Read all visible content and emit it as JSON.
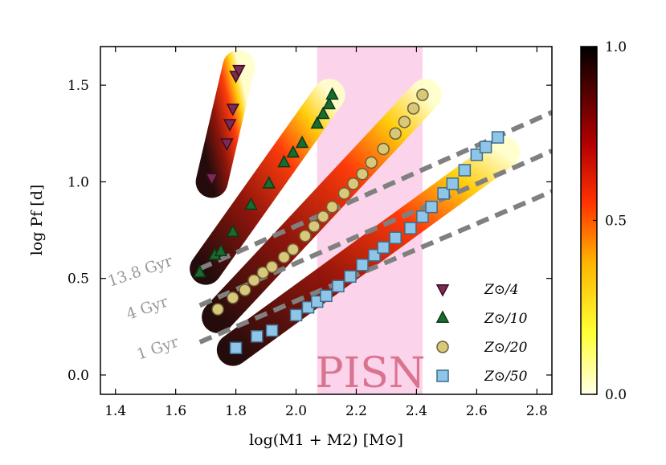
{
  "chart_data": {
    "type": "scatter",
    "xlabel": "log(M1 + M2) [M⊙]",
    "ylabel": "log  Pf [d]",
    "xlim": [
      1.35,
      2.85
    ],
    "ylim": [
      -0.1,
      1.7
    ],
    "xticks": [
      1.4,
      1.6,
      1.8,
      2.0,
      2.2,
      2.4,
      2.6,
      2.8
    ],
    "xtick_labels": [
      "1.4",
      "1.6",
      "1.8",
      "2.0",
      "2.2",
      "2.4",
      "2.6",
      "2.8"
    ],
    "yticks": [
      0.0,
      0.5,
      1.0,
      1.5
    ],
    "ytick_labels": [
      "0.0",
      "0.5",
      "1.0",
      "1.5"
    ],
    "shaded_region": {
      "label": "PISN",
      "x": [
        2.07,
        2.42
      ],
      "color": "#fbd3ea"
    },
    "isochrones": [
      {
        "label": "13.8 Gyr",
        "x": [
          1.68,
          2.85
        ],
        "y": [
          0.55,
          1.36
        ]
      },
      {
        "label": "4 Gyr",
        "x": [
          1.68,
          2.85
        ],
        "y": [
          0.36,
          1.16
        ]
      },
      {
        "label": "1 Gyr",
        "x": [
          1.68,
          2.85
        ],
        "y": [
          0.17,
          0.95
        ]
      }
    ],
    "bands": [
      {
        "x": [
          1.72,
          1.81
        ],
        "y": [
          1.0,
          1.6
        ]
      },
      {
        "x": [
          1.7,
          2.11
        ],
        "y": [
          0.55,
          1.45
        ]
      },
      {
        "x": [
          1.74,
          2.43
        ],
        "y": [
          0.3,
          1.45
        ]
      },
      {
        "x": [
          1.79,
          2.69
        ],
        "y": [
          0.13,
          1.15
        ]
      }
    ],
    "series": [
      {
        "name": "Z⊙/4",
        "marker": "triangle-down",
        "color": "#7b2c54",
        "edge": "#3d0b24",
        "points": [
          [
            1.72,
            1.02
          ],
          [
            1.77,
            1.2
          ],
          [
            1.78,
            1.3
          ],
          [
            1.79,
            1.38
          ],
          [
            1.8,
            1.55
          ],
          [
            1.81,
            1.58
          ]
        ]
      },
      {
        "name": "Z⊙/10",
        "marker": "triangle-up",
        "color": "#1a6b2e",
        "edge": "#0b3a17",
        "points": [
          [
            1.68,
            0.53
          ],
          [
            1.73,
            0.62
          ],
          [
            1.75,
            0.64
          ],
          [
            1.79,
            0.74
          ],
          [
            1.85,
            0.88
          ],
          [
            1.91,
            0.99
          ],
          [
            1.96,
            1.1
          ],
          [
            1.99,
            1.15
          ],
          [
            2.02,
            1.2
          ],
          [
            2.07,
            1.3
          ],
          [
            2.09,
            1.35
          ],
          [
            2.11,
            1.4
          ],
          [
            2.12,
            1.45
          ]
        ]
      },
      {
        "name": "Z⊙/20",
        "marker": "circle",
        "color": "#d9c87a",
        "edge": "#6b6138",
        "points": [
          [
            1.74,
            0.34
          ],
          [
            1.79,
            0.4
          ],
          [
            1.83,
            0.44
          ],
          [
            1.86,
            0.49
          ],
          [
            1.89,
            0.53
          ],
          [
            1.92,
            0.56
          ],
          [
            1.96,
            0.61
          ],
          [
            1.99,
            0.65
          ],
          [
            2.03,
            0.72
          ],
          [
            2.06,
            0.77
          ],
          [
            2.09,
            0.82
          ],
          [
            2.12,
            0.87
          ],
          [
            2.16,
            0.94
          ],
          [
            2.19,
            0.99
          ],
          [
            2.22,
            1.04
          ],
          [
            2.25,
            1.1
          ],
          [
            2.29,
            1.17
          ],
          [
            2.33,
            1.25
          ],
          [
            2.36,
            1.31
          ],
          [
            2.39,
            1.38
          ],
          [
            2.42,
            1.45
          ]
        ]
      },
      {
        "name": "Z⊙/50",
        "marker": "square",
        "color": "#8fc6e8",
        "edge": "#3c6c8c",
        "points": [
          [
            1.8,
            0.14
          ],
          [
            1.87,
            0.2
          ],
          [
            1.92,
            0.23
          ],
          [
            2.0,
            0.31
          ],
          [
            2.04,
            0.35
          ],
          [
            2.07,
            0.38
          ],
          [
            2.1,
            0.41
          ],
          [
            2.14,
            0.46
          ],
          [
            2.18,
            0.51
          ],
          [
            2.22,
            0.57
          ],
          [
            2.26,
            0.62
          ],
          [
            2.29,
            0.66
          ],
          [
            2.33,
            0.71
          ],
          [
            2.38,
            0.76
          ],
          [
            2.42,
            0.82
          ],
          [
            2.45,
            0.87
          ],
          [
            2.49,
            0.94
          ],
          [
            2.52,
            0.99
          ],
          [
            2.56,
            1.06
          ],
          [
            2.6,
            1.14
          ],
          [
            2.63,
            1.18
          ],
          [
            2.67,
            1.23
          ]
        ]
      }
    ],
    "colorbar": {
      "ticks": [
        0.0,
        0.5,
        1.0
      ],
      "tick_labels": [
        "0.0",
        "0.5",
        "1.0"
      ],
      "colors": [
        "#ffffe6",
        "#ffff33",
        "#ffb300",
        "#ff3300",
        "#b30000",
        "#4d0000",
        "#000000"
      ]
    }
  }
}
